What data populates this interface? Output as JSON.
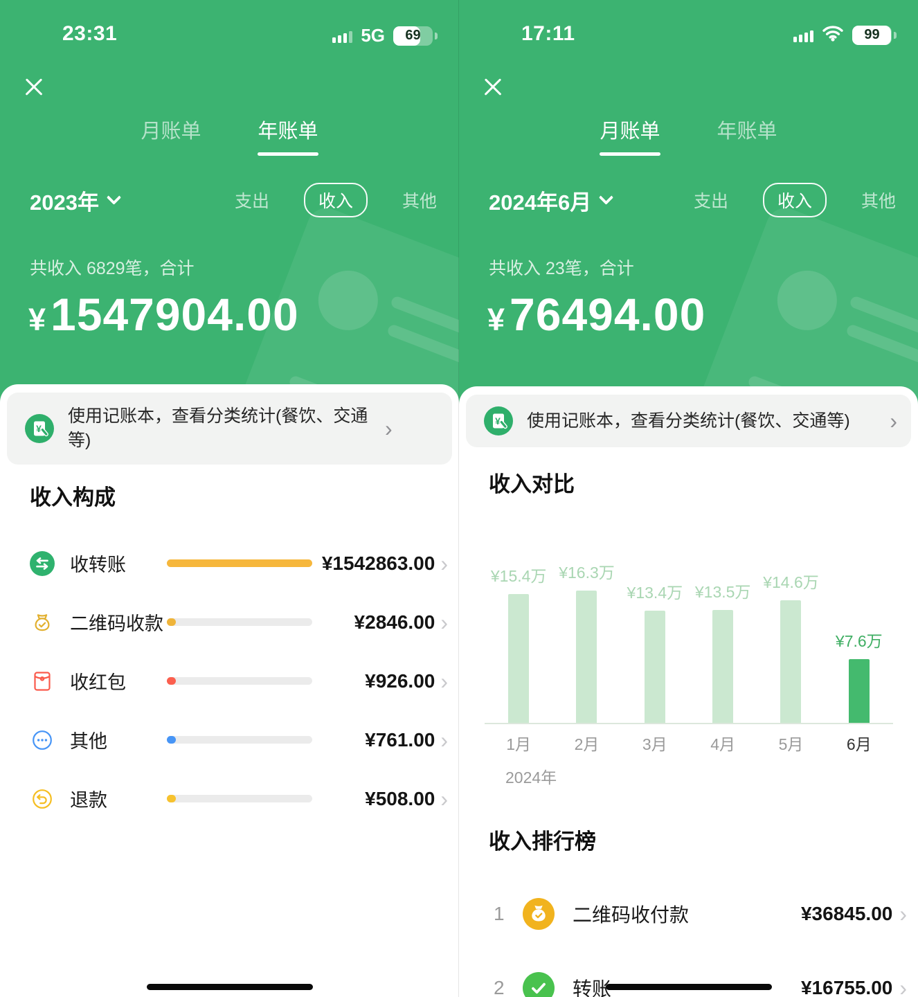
{
  "colors": {
    "header_green": "#3CB371",
    "accent_orange": "#F6B73C",
    "chart_bar_light": "#CBE8D0",
    "chart_bar_highlight": "#44BA6E",
    "rank_yellow": "#F1B31E",
    "rank_green": "#49C24E"
  },
  "left": {
    "status": {
      "time": "23:31",
      "network": "5G",
      "battery": "69",
      "signal_bars": 3
    },
    "tabs": [
      {
        "label": "月账单"
      },
      {
        "label": "年账单"
      }
    ],
    "active_tab": "年账单",
    "period": "2023年",
    "filters": [
      {
        "label": "支出"
      },
      {
        "label": "收入"
      },
      {
        "label": "其他"
      }
    ],
    "active_filter": "收入",
    "summary": "共收入 6829笔，合计",
    "total_currency": "¥",
    "total": "1547904.00",
    "banner": "使用记账本，查看分类统计(餐饮、交通等)",
    "section_title": "收入构成",
    "rows": [
      {
        "icon": "transfer-icon",
        "label": "收转账",
        "amount": "¥1542863.00",
        "bar": "full",
        "bar_color": "#F6B73C"
      },
      {
        "icon": "qr-moneybag-icon",
        "label": "二维码收款",
        "amount": "¥2846.00",
        "bar": "dot",
        "bar_color": "#EFB43A"
      },
      {
        "icon": "red-packet-icon",
        "label": "收红包",
        "amount": "¥926.00",
        "bar": "dot",
        "bar_color": "#FB5F4E"
      },
      {
        "icon": "more-dots-icon",
        "label": "其他",
        "amount": "¥761.00",
        "bar": "dot",
        "bar_color": "#4795F6"
      },
      {
        "icon": "refund-icon",
        "label": "退款",
        "amount": "¥508.00",
        "bar": "dot",
        "bar_color": "#F7C22E"
      }
    ]
  },
  "right": {
    "status": {
      "time": "17:11",
      "battery": "99",
      "signal_bars": 4,
      "wifi": true
    },
    "tabs": [
      {
        "label": "月账单"
      },
      {
        "label": "年账单"
      }
    ],
    "active_tab": "月账单",
    "period": "2024年6月",
    "filters": [
      {
        "label": "支出"
      },
      {
        "label": "收入"
      },
      {
        "label": "其他"
      }
    ],
    "active_filter": "收入",
    "summary": "共收入 23笔，合计",
    "total_currency": "¥",
    "total": "76494.00",
    "banner": "使用记账本，查看分类统计(餐饮、交通等)",
    "ranking_title": "收入排行榜",
    "ranking": [
      {
        "rank": "1",
        "icon": "moneybag-icon",
        "label": "二维码收付款",
        "amount": "¥36845.00"
      },
      {
        "rank": "2",
        "icon": "check-icon",
        "label": "转账",
        "amount": "¥16755.00"
      }
    ]
  },
  "chart_data": {
    "type": "bar",
    "title": "收入对比",
    "categories": [
      "1月",
      "2月",
      "3月",
      "4月",
      "5月",
      "6月"
    ],
    "values_wan": [
      15.4,
      16.3,
      13.4,
      13.5,
      14.6,
      7.6
    ],
    "labels": [
      "¥15.4万",
      "¥16.3万",
      "¥13.4万",
      "¥13.5万",
      "¥14.6万",
      "¥7.6万"
    ],
    "xlabel": "2024年",
    "highlight_index": 5,
    "ylim": [
      0,
      18
    ],
    "grid": false,
    "legend": "none"
  }
}
